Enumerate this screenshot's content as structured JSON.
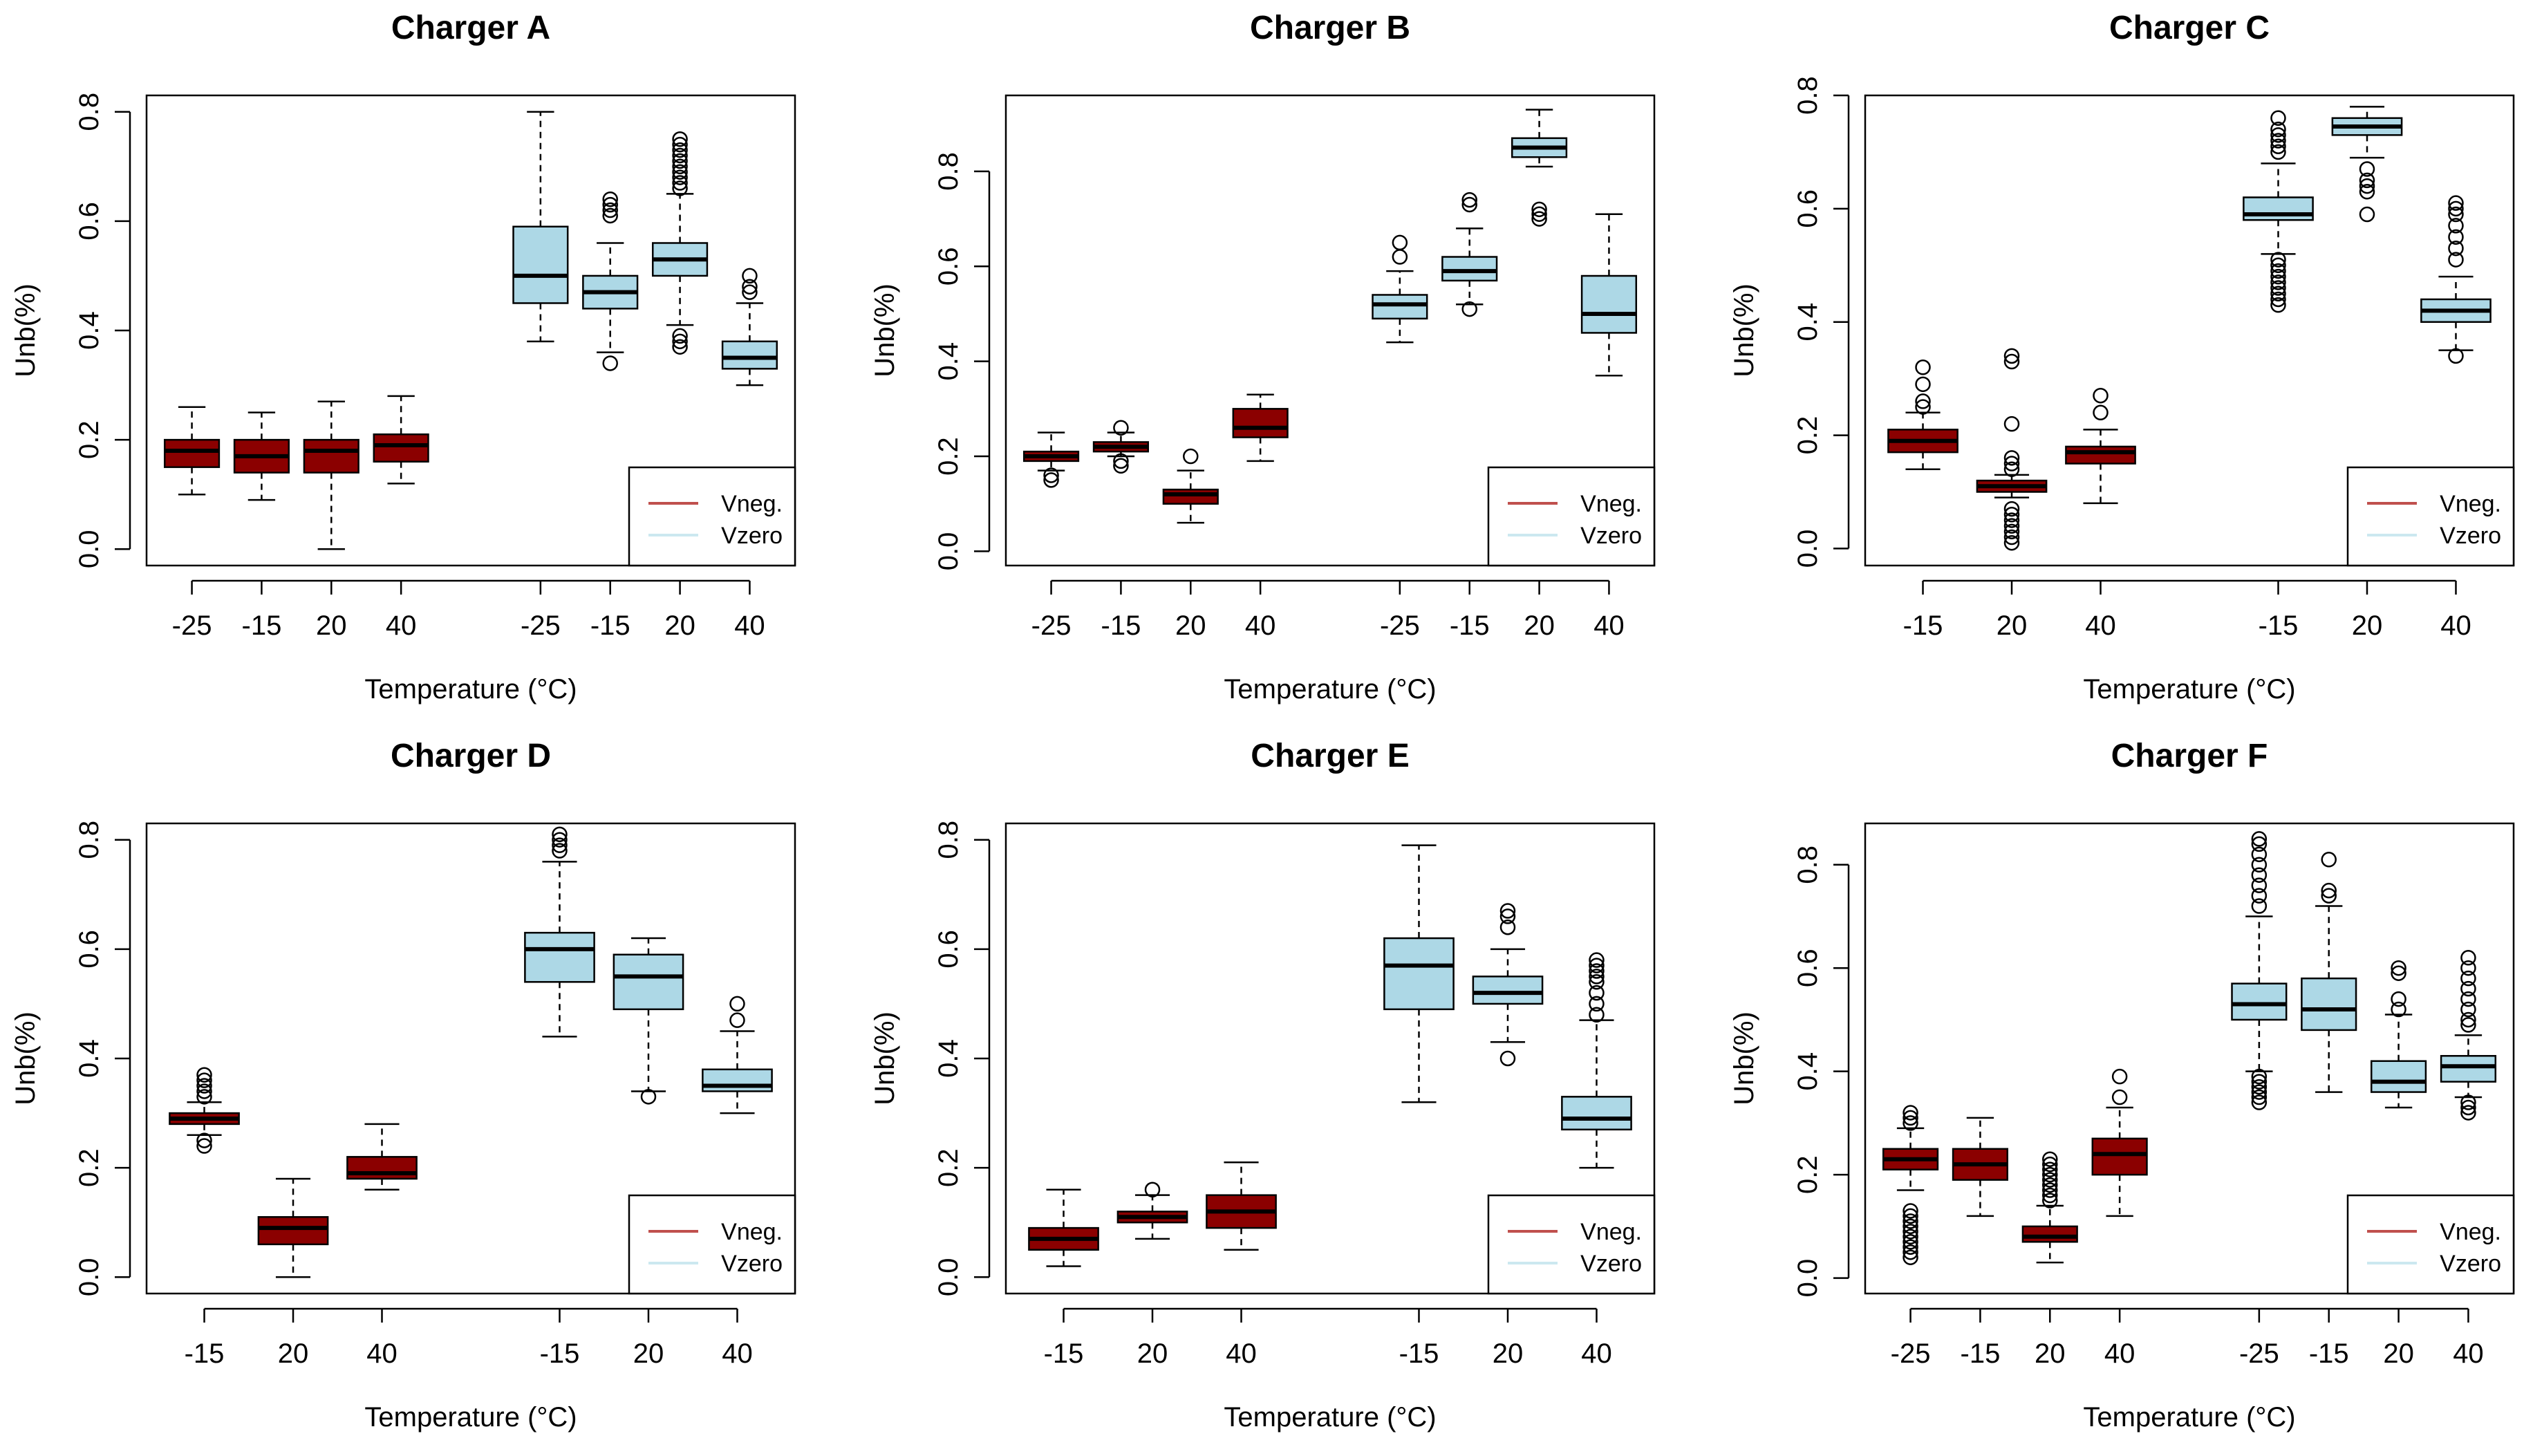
{
  "colors": {
    "vneg": "#8b0000",
    "vzero": "#add8e6",
    "vneg_legend": "#c0504d",
    "vzero_legend": "#cce8f0"
  },
  "chart_data": [
    {
      "type": "boxplot",
      "title": "Charger A",
      "xlabel": "Temperature (°C)",
      "ylabel": "Unb(%)",
      "ylim": [
        -0.03,
        0.83
      ],
      "yticks": [
        0.0,
        0.2,
        0.4,
        0.6,
        0.8
      ],
      "ytick_labels": [
        "0.0",
        "0.2",
        "0.4",
        "0.6",
        "0.8"
      ],
      "legend": {
        "position": "bottom-right",
        "entries": [
          "Vneg.",
          "Vzero"
        ]
      },
      "groups": [
        {
          "series": "Vneg.",
          "color": "vneg",
          "boxes": [
            {
              "label": "-25",
              "min": 0.1,
              "q1": 0.15,
              "median": 0.18,
              "q3": 0.2,
              "max": 0.26,
              "outliers": []
            },
            {
              "label": "-15",
              "min": 0.09,
              "q1": 0.14,
              "median": 0.17,
              "q3": 0.2,
              "max": 0.25,
              "outliers": []
            },
            {
              "label": "20",
              "min": 0.0,
              "q1": 0.14,
              "median": 0.18,
              "q3": 0.2,
              "max": 0.27,
              "outliers": []
            },
            {
              "label": "40",
              "min": 0.12,
              "q1": 0.16,
              "median": 0.19,
              "q3": 0.21,
              "max": 0.28,
              "outliers": []
            }
          ]
        },
        {
          "series": "Vzero",
          "color": "vzero",
          "boxes": [
            {
              "label": "-25",
              "min": 0.38,
              "q1": 0.45,
              "median": 0.5,
              "q3": 0.59,
              "max": 0.8,
              "outliers": []
            },
            {
              "label": "-15",
              "min": 0.36,
              "q1": 0.44,
              "median": 0.47,
              "q3": 0.5,
              "max": 0.56,
              "outliers": [
                0.34,
                0.61,
                0.62,
                0.63,
                0.64
              ]
            },
            {
              "label": "20",
              "min": 0.41,
              "q1": 0.5,
              "median": 0.53,
              "q3": 0.56,
              "max": 0.65,
              "outliers": [
                0.37,
                0.38,
                0.39,
                0.66,
                0.67,
                0.68,
                0.69,
                0.7,
                0.71,
                0.72,
                0.73,
                0.74,
                0.75
              ]
            },
            {
              "label": "40",
              "min": 0.3,
              "q1": 0.33,
              "median": 0.35,
              "q3": 0.38,
              "max": 0.45,
              "outliers": [
                0.47,
                0.48,
                0.5
              ]
            }
          ]
        }
      ]
    },
    {
      "type": "boxplot",
      "title": "Charger B",
      "xlabel": "Temperature (°C)",
      "ylabel": "Unb(%)",
      "ylim": [
        -0.03,
        0.96
      ],
      "yticks": [
        0.0,
        0.2,
        0.4,
        0.6,
        0.8
      ],
      "ytick_labels": [
        "0.0",
        "0.2",
        "0.4",
        "0.6",
        "0.8"
      ],
      "legend": {
        "position": "bottom-right",
        "entries": [
          "Vneg.",
          "Vzero"
        ]
      },
      "groups": [
        {
          "series": "Vneg.",
          "color": "vneg",
          "boxes": [
            {
              "label": "-25",
              "min": 0.17,
              "q1": 0.19,
              "median": 0.2,
              "q3": 0.21,
              "max": 0.25,
              "outliers": [
                0.15,
                0.16
              ]
            },
            {
              "label": "-15",
              "min": 0.2,
              "q1": 0.21,
              "median": 0.22,
              "q3": 0.23,
              "max": 0.25,
              "outliers": [
                0.18,
                0.19,
                0.26
              ]
            },
            {
              "label": "20",
              "min": 0.06,
              "q1": 0.1,
              "median": 0.12,
              "q3": 0.13,
              "max": 0.17,
              "outliers": [
                0.2
              ]
            },
            {
              "label": "40",
              "min": 0.19,
              "q1": 0.24,
              "median": 0.26,
              "q3": 0.3,
              "max": 0.33,
              "outliers": []
            }
          ]
        },
        {
          "series": "Vzero",
          "color": "vzero",
          "boxes": [
            {
              "label": "-25",
              "min": 0.44,
              "q1": 0.49,
              "median": 0.52,
              "q3": 0.54,
              "max": 0.59,
              "outliers": [
                0.62,
                0.65
              ]
            },
            {
              "label": "-15",
              "min": 0.52,
              "q1": 0.57,
              "median": 0.59,
              "q3": 0.62,
              "max": 0.68,
              "outliers": [
                0.51,
                0.73,
                0.74
              ]
            },
            {
              "label": "20",
              "min": 0.81,
              "q1": 0.83,
              "median": 0.85,
              "q3": 0.87,
              "max": 0.93,
              "outliers": [
                0.7,
                0.71,
                0.72
              ]
            },
            {
              "label": "40",
              "min": 0.37,
              "q1": 0.46,
              "median": 0.5,
              "q3": 0.58,
              "max": 0.71,
              "outliers": []
            }
          ]
        }
      ]
    },
    {
      "type": "boxplot",
      "title": "Charger C",
      "xlabel": "Temperature (°C)",
      "ylabel": "Unb(%)",
      "ylim": [
        -0.03,
        0.8
      ],
      "yticks": [
        0.0,
        0.2,
        0.4,
        0.6,
        0.8
      ],
      "ytick_labels": [
        "0.0",
        "0.2",
        "0.4",
        "0.6",
        "0.8"
      ],
      "legend": {
        "position": "bottom-right",
        "entries": [
          "Vneg.",
          "Vzero"
        ]
      },
      "groups": [
        {
          "series": "Vneg.",
          "color": "vneg",
          "boxes": [
            {
              "label": "-15",
              "min": 0.14,
              "q1": 0.17,
              "median": 0.19,
              "q3": 0.21,
              "max": 0.24,
              "outliers": [
                0.25,
                0.26,
                0.29,
                0.32
              ]
            },
            {
              "label": "20",
              "min": 0.09,
              "q1": 0.1,
              "median": 0.11,
              "q3": 0.12,
              "max": 0.13,
              "outliers": [
                0.01,
                0.02,
                0.03,
                0.04,
                0.05,
                0.06,
                0.07,
                0.14,
                0.15,
                0.16,
                0.22,
                0.33,
                0.34
              ]
            },
            {
              "label": "40",
              "min": 0.08,
              "q1": 0.15,
              "median": 0.17,
              "q3": 0.18,
              "max": 0.21,
              "outliers": [
                0.24,
                0.27
              ]
            }
          ]
        },
        {
          "series": "Vzero",
          "color": "vzero",
          "boxes": [
            {
              "label": "-15",
              "min": 0.52,
              "q1": 0.58,
              "median": 0.59,
              "q3": 0.62,
              "max": 0.68,
              "outliers": [
                0.43,
                0.44,
                0.45,
                0.46,
                0.47,
                0.48,
                0.49,
                0.5,
                0.51,
                0.7,
                0.71,
                0.72,
                0.73,
                0.74,
                0.76
              ]
            },
            {
              "label": "20",
              "min": 0.69,
              "q1": 0.73,
              "median": 0.745,
              "q3": 0.76,
              "max": 0.78,
              "outliers": [
                0.59,
                0.63,
                0.64,
                0.65,
                0.67
              ]
            },
            {
              "label": "40",
              "min": 0.35,
              "q1": 0.4,
              "median": 0.42,
              "q3": 0.44,
              "max": 0.48,
              "outliers": [
                0.34,
                0.51,
                0.53,
                0.55,
                0.57,
                0.59,
                0.6,
                0.61
              ]
            }
          ]
        }
      ]
    },
    {
      "type": "boxplot",
      "title": "Charger D",
      "xlabel": "Temperature (°C)",
      "ylabel": "Unb(%)",
      "ylim": [
        -0.03,
        0.83
      ],
      "yticks": [
        0.0,
        0.2,
        0.4,
        0.6,
        0.8
      ],
      "ytick_labels": [
        "0.0",
        "0.2",
        "0.4",
        "0.6",
        "0.8"
      ],
      "legend": {
        "position": "bottom-right",
        "entries": [
          "Vneg.",
          "Vzero"
        ]
      },
      "groups": [
        {
          "series": "Vneg.",
          "color": "vneg",
          "boxes": [
            {
              "label": "-15",
              "min": 0.26,
              "q1": 0.28,
              "median": 0.29,
              "q3": 0.3,
              "max": 0.32,
              "outliers": [
                0.24,
                0.25,
                0.33,
                0.34,
                0.35,
                0.36,
                0.37
              ]
            },
            {
              "label": "20",
              "min": 0.0,
              "q1": 0.06,
              "median": 0.09,
              "q3": 0.11,
              "max": 0.18,
              "outliers": []
            },
            {
              "label": "40",
              "min": 0.16,
              "q1": 0.18,
              "median": 0.19,
              "q3": 0.22,
              "max": 0.28,
              "outliers": []
            }
          ]
        },
        {
          "series": "Vzero",
          "color": "vzero",
          "boxes": [
            {
              "label": "-15",
              "min": 0.44,
              "q1": 0.54,
              "median": 0.6,
              "q3": 0.63,
              "max": 0.76,
              "outliers": [
                0.78,
                0.79,
                0.8,
                0.81
              ]
            },
            {
              "label": "20",
              "min": 0.34,
              "q1": 0.49,
              "median": 0.55,
              "q3": 0.59,
              "max": 0.62,
              "outliers": [
                0.33
              ]
            },
            {
              "label": "40",
              "min": 0.3,
              "q1": 0.34,
              "median": 0.35,
              "q3": 0.38,
              "max": 0.45,
              "outliers": [
                0.47,
                0.5
              ]
            }
          ]
        }
      ]
    },
    {
      "type": "boxplot",
      "title": "Charger E",
      "xlabel": "Temperature (°C)",
      "ylabel": "Unb(%)",
      "ylim": [
        -0.03,
        0.83
      ],
      "yticks": [
        0.0,
        0.2,
        0.4,
        0.6,
        0.8
      ],
      "ytick_labels": [
        "0.0",
        "0.2",
        "0.4",
        "0.6",
        "0.8"
      ],
      "legend": {
        "position": "bottom-right",
        "entries": [
          "Vneg.",
          "Vzero"
        ]
      },
      "groups": [
        {
          "series": "Vneg.",
          "color": "vneg",
          "boxes": [
            {
              "label": "-15",
              "min": 0.02,
              "q1": 0.05,
              "median": 0.07,
              "q3": 0.09,
              "max": 0.16,
              "outliers": []
            },
            {
              "label": "20",
              "min": 0.07,
              "q1": 0.1,
              "median": 0.11,
              "q3": 0.12,
              "max": 0.15,
              "outliers": [
                0.16
              ]
            },
            {
              "label": "40",
              "min": 0.05,
              "q1": 0.09,
              "median": 0.12,
              "q3": 0.15,
              "max": 0.21,
              "outliers": []
            }
          ]
        },
        {
          "series": "Vzero",
          "color": "vzero",
          "boxes": [
            {
              "label": "-15",
              "min": 0.32,
              "q1": 0.49,
              "median": 0.57,
              "q3": 0.62,
              "max": 0.79,
              "outliers": []
            },
            {
              "label": "20",
              "min": 0.43,
              "q1": 0.5,
              "median": 0.52,
              "q3": 0.55,
              "max": 0.6,
              "outliers": [
                0.4,
                0.64,
                0.66,
                0.67
              ]
            },
            {
              "label": "40",
              "min": 0.2,
              "q1": 0.27,
              "median": 0.29,
              "q3": 0.33,
              "max": 0.47,
              "outliers": [
                0.48,
                0.5,
                0.52,
                0.54,
                0.55,
                0.56,
                0.57,
                0.58
              ]
            }
          ]
        }
      ]
    },
    {
      "type": "boxplot",
      "title": "Charger F",
      "xlabel": "Temperature (°C)",
      "ylabel": "Unb(%)",
      "ylim": [
        -0.03,
        0.88
      ],
      "yticks": [
        0.0,
        0.2,
        0.4,
        0.6,
        0.8
      ],
      "ytick_labels": [
        "0.0",
        "0.2",
        "0.4",
        "0.6",
        "0.8"
      ],
      "legend": {
        "position": "bottom-right",
        "entries": [
          "Vneg.",
          "Vzero"
        ]
      },
      "groups": [
        {
          "series": "Vneg.",
          "color": "vneg",
          "boxes": [
            {
              "label": "-25",
              "min": 0.17,
              "q1": 0.21,
              "median": 0.23,
              "q3": 0.25,
              "max": 0.29,
              "outliers": [
                0.04,
                0.05,
                0.06,
                0.07,
                0.08,
                0.09,
                0.1,
                0.11,
                0.12,
                0.13,
                0.3,
                0.31,
                0.32
              ]
            },
            {
              "label": "-15",
              "min": 0.12,
              "q1": 0.19,
              "median": 0.22,
              "q3": 0.25,
              "max": 0.31,
              "outliers": []
            },
            {
              "label": "20",
              "min": 0.03,
              "q1": 0.07,
              "median": 0.08,
              "q3": 0.1,
              "max": 0.14,
              "outliers": [
                0.15,
                0.16,
                0.17,
                0.18,
                0.19,
                0.2,
                0.21,
                0.22,
                0.23
              ]
            },
            {
              "label": "40",
              "min": 0.12,
              "q1": 0.2,
              "median": 0.24,
              "q3": 0.27,
              "max": 0.33,
              "outliers": [
                0.35,
                0.39
              ]
            }
          ]
        },
        {
          "series": "Vzero",
          "color": "vzero",
          "boxes": [
            {
              "label": "-25",
              "min": 0.4,
              "q1": 0.5,
              "median": 0.53,
              "q3": 0.57,
              "max": 0.7,
              "outliers": [
                0.34,
                0.35,
                0.36,
                0.37,
                0.38,
                0.39,
                0.72,
                0.74,
                0.76,
                0.78,
                0.8,
                0.82,
                0.84,
                0.85
              ]
            },
            {
              "label": "-15",
              "min": 0.36,
              "q1": 0.48,
              "median": 0.52,
              "q3": 0.58,
              "max": 0.72,
              "outliers": [
                0.74,
                0.75,
                0.81
              ]
            },
            {
              "label": "20",
              "min": 0.33,
              "q1": 0.36,
              "median": 0.38,
              "q3": 0.42,
              "max": 0.51,
              "outliers": [
                0.52,
                0.54,
                0.59,
                0.6
              ]
            },
            {
              "label": "40",
              "min": 0.35,
              "q1": 0.38,
              "median": 0.41,
              "q3": 0.43,
              "max": 0.47,
              "outliers": [
                0.32,
                0.33,
                0.34,
                0.49,
                0.5,
                0.52,
                0.54,
                0.56,
                0.58,
                0.6,
                0.62
              ]
            }
          ]
        }
      ]
    }
  ]
}
